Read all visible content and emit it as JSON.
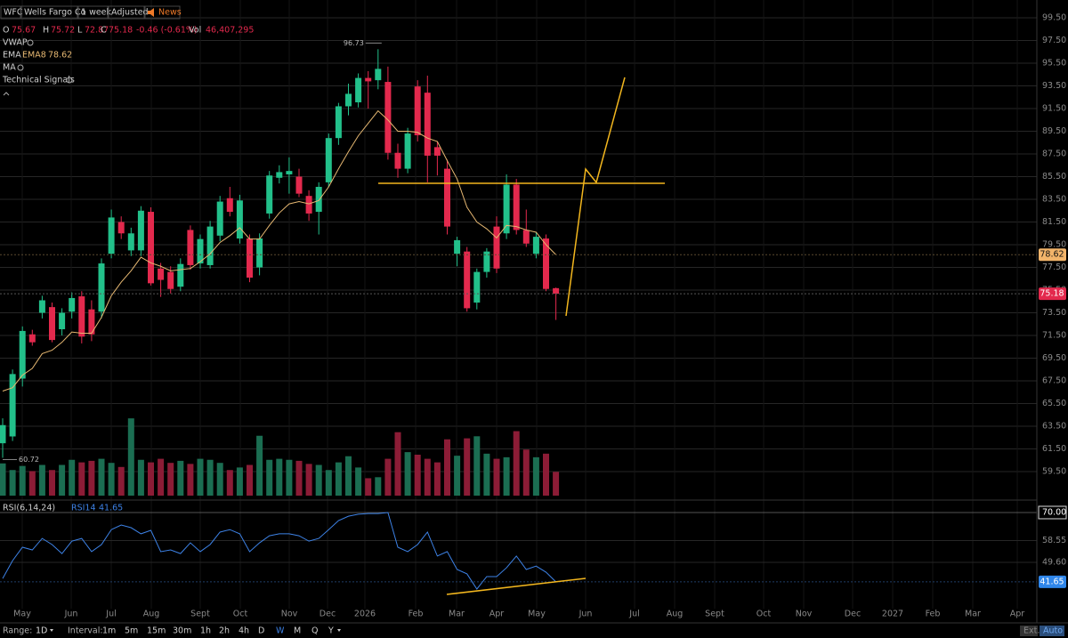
{
  "chart_data": {
    "type": "candlestick",
    "symbol": "WFC",
    "name": "Wells Fargo Co",
    "interval_label": "1 week",
    "adjusted_label": "Adjusted",
    "news_label": "News",
    "ohlc_letters": [
      "O",
      "H",
      "L",
      "C",
      "Vol"
    ],
    "change_label": "-0.46 (-0.61%)",
    "volume_label": "46,407,295",
    "up_color": "#22c08a",
    "down_color": "#e3294d",
    "volume_up_color": "#1b6e52",
    "volume_down_color": "#8c1c36",
    "open": [
      62.0,
      62.6,
      67.7,
      71.6,
      73.5,
      74.0,
      72.05,
      73.6,
      74.95,
      73.8,
      73.6,
      78.7,
      81.5,
      79.0,
      79.0,
      82.4,
      77.4,
      77.1,
      75.8,
      80.8,
      77.85,
      77.7,
      80.3,
      83.6,
      80.05,
      80.05,
      77.5,
      82.25,
      85.4,
      85.7,
      85.5,
      83.8,
      82.4,
      85.0,
      88.9,
      91.7,
      92.05,
      94.2,
      94.0,
      93.85,
      87.6,
      86.2,
      93.45,
      92.9,
      88.1,
      86.2,
      78.7,
      78.9,
      74.4,
      77.1,
      81.1,
      80.5,
      84.8,
      80.8,
      78.7,
      80.05,
      75.67
    ],
    "high": [
      64.2,
      68.5,
      72.3,
      72.0,
      75.0,
      74.4,
      73.9,
      75.3,
      75.4,
      74.6,
      78.3,
      82.6,
      82.0,
      81.0,
      82.9,
      82.8,
      77.9,
      77.6,
      78.3,
      81.2,
      80.4,
      81.6,
      83.8,
      84.6,
      83.9,
      80.4,
      80.5,
      86.0,
      86.5,
      87.2,
      86.2,
      84.3,
      85.0,
      89.3,
      92.0,
      93.7,
      94.6,
      94.8,
      96.73,
      95.2,
      88.4,
      89.8,
      94.0,
      94.4,
      88.6,
      87.0,
      80.2,
      79.3,
      77.4,
      79.2,
      82.0,
      85.7,
      85.3,
      82.6,
      80.6,
      80.4,
      75.72
    ],
    "low": [
      60.72,
      62.2,
      67.0,
      70.6,
      73.0,
      70.9,
      71.5,
      73.0,
      70.8,
      71.0,
      73.0,
      78.3,
      80.0,
      78.5,
      78.5,
      75.9,
      74.9,
      75.2,
      75.4,
      77.3,
      77.4,
      77.4,
      79.8,
      82.0,
      79.6,
      76.2,
      76.8,
      81.8,
      84.9,
      84.0,
      83.7,
      81.6,
      80.4,
      84.6,
      88.3,
      90.9,
      91.6,
      91.5,
      93.2,
      87.0,
      85.4,
      85.8,
      88.6,
      85.0,
      85.6,
      80.4,
      77.6,
      73.6,
      73.8,
      76.6,
      77.0,
      80.0,
      80.4,
      79.3,
      78.3,
      75.4,
      72.87
    ],
    "close": [
      63.6,
      68.1,
      71.9,
      70.9,
      74.6,
      71.1,
      73.5,
      74.8,
      71.4,
      71.6,
      77.85,
      81.9,
      80.5,
      80.5,
      82.5,
      76.1,
      76.4,
      75.6,
      77.8,
      77.7,
      80.0,
      81.1,
      83.3,
      82.4,
      83.4,
      76.6,
      80.05,
      85.6,
      85.9,
      86.0,
      84.0,
      82.25,
      84.6,
      88.9,
      91.7,
      92.8,
      94.2,
      93.9,
      95.0,
      87.6,
      86.2,
      89.3,
      89.15,
      87.35,
      87.35,
      81.1,
      79.9,
      73.9,
      77.1,
      78.9,
      77.4,
      84.8,
      80.8,
      79.6,
      80.2,
      75.6,
      75.18
    ],
    "volume": [
      63000000,
      50000000,
      58000000,
      48000000,
      60000000,
      50000000,
      60000000,
      70000000,
      65000000,
      68000000,
      72000000,
      64000000,
      56000000,
      151000000,
      70000000,
      65000000,
      72000000,
      64000000,
      68000000,
      62000000,
      72000000,
      70000000,
      64000000,
      50000000,
      55000000,
      60000000,
      117000000,
      70000000,
      72000000,
      70000000,
      68000000,
      62000000,
      60000000,
      50000000,
      65000000,
      77000000,
      55000000,
      34000000,
      36000000,
      72000000,
      124000000,
      85000000,
      80000000,
      72000000,
      65000000,
      110000000,
      78000000,
      112000000,
      116000000,
      82000000,
      72000000,
      75000000,
      126000000,
      90000000,
      75000000,
      82000000,
      46407295
    ],
    "volume_lim": [
      0,
      160000000
    ],
    "ylim": [
      57.54,
      101.07
    ],
    "yticks": [
      {
        "value": 99.5,
        "label": "99.50"
      },
      {
        "value": 97.5,
        "label": "97.50"
      },
      {
        "value": 95.5,
        "label": "95.50"
      },
      {
        "value": 93.5,
        "label": "93.50"
      },
      {
        "value": 91.5,
        "label": "91.50"
      },
      {
        "value": 89.5,
        "label": "89.50"
      },
      {
        "value": 87.5,
        "label": "87.50"
      },
      {
        "value": 85.5,
        "label": "85.50"
      },
      {
        "value": 83.5,
        "label": "83.50"
      },
      {
        "value": 81.5,
        "label": "81.50"
      },
      {
        "value": 79.5,
        "label": "79.50"
      },
      {
        "value": 77.5,
        "label": "77.50"
      },
      {
        "value": 75.5,
        "label": "75.50"
      },
      {
        "value": 73.5,
        "label": "73.50"
      },
      {
        "value": 71.5,
        "label": "71.50"
      },
      {
        "value": 69.5,
        "label": "69.50"
      },
      {
        "value": 67.5,
        "label": "67.50"
      },
      {
        "value": 65.5,
        "label": "65.50"
      },
      {
        "value": 63.5,
        "label": "63.50"
      },
      {
        "value": 61.5,
        "label": "61.50"
      },
      {
        "value": 59.5,
        "label": "59.50"
      }
    ],
    "grid": true,
    "indicators": [
      "VWAP",
      "EMA",
      "MA",
      "Technical Signals"
    ],
    "ema": {
      "name": "EMA8",
      "color": "#e6b872",
      "values": [
        66.6,
        66.9,
        68.0,
        68.6,
        69.9,
        70.2,
        70.9,
        71.8,
        71.7,
        71.7,
        73.1,
        75.0,
        76.2,
        77.2,
        78.4,
        77.9,
        77.6,
        77.2,
        77.3,
        77.4,
        78.0,
        78.7,
        79.7,
        80.3,
        81.0,
        80.0,
        80.0,
        81.2,
        82.3,
        83.1,
        83.3,
        83.1,
        83.4,
        84.6,
        86.2,
        87.7,
        89.1,
        90.2,
        91.3,
        90.5,
        89.5,
        89.5,
        89.4,
        88.9,
        88.6,
        86.9,
        85.3,
        82.8,
        81.5,
        80.9,
        80.1,
        81.2,
        81.1,
        80.8,
        80.6,
        79.5,
        78.62
      ]
    },
    "rsi": {
      "title": "RSI(6,14,24)",
      "name": "RSI14",
      "color": "#3d82e6",
      "values": [
        43.0,
        50.3,
        55.8,
        54.7,
        59.4,
        56.9,
        53.2,
        58.3,
        59.4,
        54.0,
        56.9,
        63.0,
        64.9,
        63.8,
        61.3,
        62.7,
        54.0,
        54.7,
        53.2,
        57.6,
        54.0,
        56.9,
        62.0,
        63.0,
        61.3,
        54.0,
        57.6,
        60.5,
        61.3,
        61.3,
        60.5,
        58.3,
        59.4,
        63.0,
        66.7,
        68.5,
        69.3,
        69.6,
        69.6,
        70.0,
        55.8,
        54.0,
        56.9,
        62.0,
        52.2,
        54.0,
        46.7,
        44.9,
        38.7,
        43.8,
        43.8,
        47.4,
        52.2,
        46.7,
        48.1,
        45.6,
        41.65
      ],
      "ylim": [
        28.5,
        74
      ],
      "yticks": [
        {
          "value": 70,
          "label": "70.00"
        },
        {
          "value": 58.55,
          "label": "58.55"
        },
        {
          "value": 49.6,
          "label": "49.60"
        }
      ]
    },
    "months": [
      "May",
      "Jun",
      "Jul",
      "Aug",
      "Sept",
      "Oct",
      "Nov",
      "Dec",
      "2026",
      "Feb",
      "Mar",
      "Apr",
      "May",
      "Jun",
      "Jul",
      "Aug",
      "Sept",
      "Oct",
      "Nov",
      "Dec",
      "2027",
      "Feb",
      "Mar",
      "Apr"
    ]
  },
  "toolbar": {
    "range_label": "Range:",
    "range": "1D",
    "interval_label": "Interval:",
    "intervals": [
      "1m",
      "5m",
      "15m",
      "30m",
      "1h",
      "2h",
      "4h",
      "D",
      "W",
      "M",
      "Q",
      "Y"
    ],
    "ext": "Ext.",
    "auto": "Auto"
  }
}
